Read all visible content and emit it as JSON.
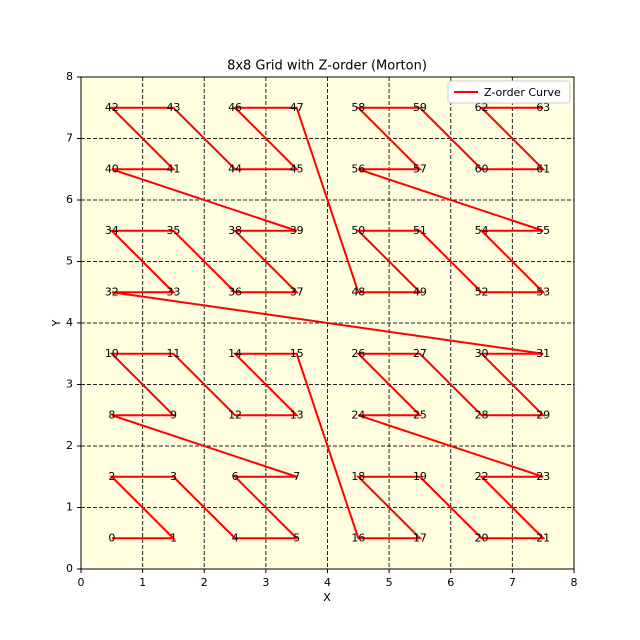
{
  "chart_data": {
    "type": "line",
    "title": "8x8 Grid with Z-order (Morton)",
    "xlabel": "X",
    "ylabel": "Y",
    "xlim": [
      0,
      8
    ],
    "ylim": [
      0,
      8
    ],
    "xticks": [
      0,
      1,
      2,
      3,
      4,
      5,
      6,
      7,
      8
    ],
    "yticks": [
      0,
      1,
      2,
      3,
      4,
      5,
      6,
      7,
      8
    ],
    "grid": true,
    "legend": "upper right",
    "background": "#ffffe0",
    "series": [
      {
        "name": "Z-order Curve",
        "color": "#ff0000",
        "x": [
          0.5,
          1.5,
          0.5,
          1.5,
          2.5,
          3.5,
          2.5,
          3.5,
          0.5,
          1.5,
          0.5,
          1.5,
          2.5,
          3.5,
          2.5,
          3.5,
          4.5,
          5.5,
          4.5,
          5.5,
          6.5,
          7.5,
          6.5,
          7.5,
          4.5,
          5.5,
          4.5,
          5.5,
          6.5,
          7.5,
          6.5,
          7.5,
          0.5,
          1.5,
          0.5,
          1.5,
          2.5,
          3.5,
          2.5,
          3.5,
          0.5,
          1.5,
          0.5,
          1.5,
          2.5,
          3.5,
          2.5,
          3.5,
          4.5,
          5.5,
          4.5,
          5.5,
          6.5,
          7.5,
          6.5,
          7.5,
          4.5,
          5.5,
          4.5,
          5.5,
          6.5,
          7.5,
          6.5,
          7.5
        ],
        "values": [
          0.5,
          0.5,
          1.5,
          1.5,
          0.5,
          0.5,
          1.5,
          1.5,
          2.5,
          2.5,
          3.5,
          3.5,
          2.5,
          2.5,
          3.5,
          3.5,
          0.5,
          0.5,
          1.5,
          1.5,
          0.5,
          0.5,
          1.5,
          1.5,
          2.5,
          2.5,
          3.5,
          3.5,
          2.5,
          2.5,
          3.5,
          3.5,
          4.5,
          4.5,
          5.5,
          5.5,
          4.5,
          4.5,
          5.5,
          5.5,
          6.5,
          6.5,
          7.5,
          7.5,
          6.5,
          6.5,
          7.5,
          7.5,
          4.5,
          4.5,
          5.5,
          5.5,
          4.5,
          4.5,
          5.5,
          5.5,
          6.5,
          6.5,
          7.5,
          7.5,
          6.5,
          6.5,
          7.5,
          7.5
        ],
        "point_labels": [
          0,
          1,
          2,
          3,
          4,
          5,
          6,
          7,
          8,
          9,
          10,
          11,
          12,
          13,
          14,
          15,
          16,
          17,
          18,
          19,
          20,
          21,
          22,
          23,
          24,
          25,
          26,
          27,
          28,
          29,
          30,
          31,
          32,
          33,
          34,
          35,
          36,
          37,
          38,
          39,
          40,
          41,
          42,
          43,
          44,
          45,
          46,
          47,
          48,
          49,
          50,
          51,
          52,
          53,
          54,
          55,
          56,
          57,
          58,
          59,
          60,
          61,
          62,
          63
        ]
      }
    ]
  }
}
